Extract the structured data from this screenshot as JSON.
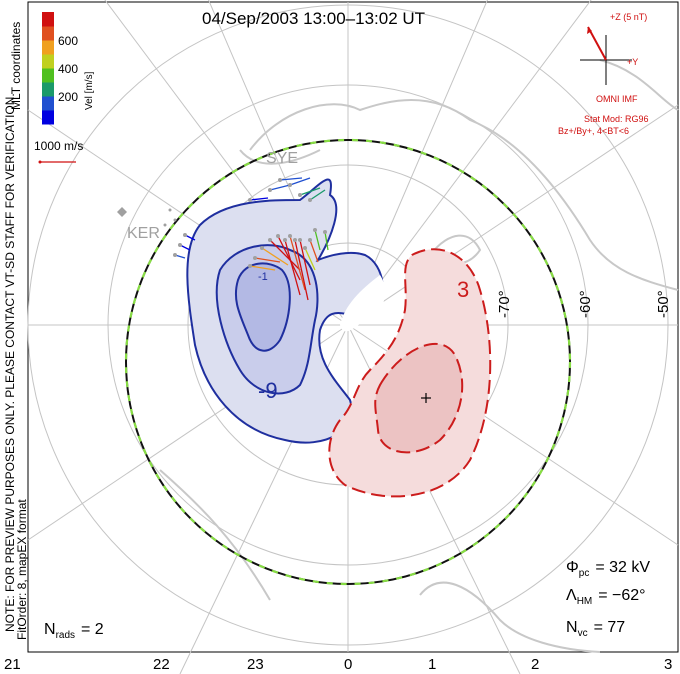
{
  "header": {
    "title": "04/Sep/2003 13:00–13:02 UT"
  },
  "color_scale": {
    "label": "Vel [m/s]",
    "ticks": [
      "200",
      "400",
      "600"
    ],
    "colors": [
      "#0000e0",
      "#2050d0",
      "#1a9a6a",
      "#50c020",
      "#c0d020",
      "#f0a020",
      "#e05020",
      "#d01010"
    ]
  },
  "coordinates_label": "MLT coordinates",
  "reference_vector": {
    "label": "1000 m/s"
  },
  "imf": {
    "z_label": "+Z (5 nT)",
    "y_label": "+Y",
    "omni": "OMNI IMF",
    "stat_mod": "Stat Mod: RG96",
    "condition": "Bz+/By+, 4<BT<6"
  },
  "stations": [
    "SYE",
    "KER"
  ],
  "latitude_labels": [
    "-50°",
    "-60°",
    "-70°"
  ],
  "contour_labels": {
    "negative": "-9",
    "positive": "3",
    "small": "-1"
  },
  "notes": {
    "preview": "NOTE: FOR PREVIEW PURPOSES ONLY. PLEASE CONTACT VT-SD STAFF FOR VERIFICATION.",
    "fit": "FitOrder: 8,  mapEX format"
  },
  "stats": {
    "phi_pc": {
      "symbol": "Φ",
      "sub": "pc",
      "value": "= 32 kV"
    },
    "lambda_hm": {
      "symbol": "Λ",
      "sub": "HM",
      "value": "= −62°"
    },
    "n_vc": {
      "symbol": "N",
      "sub": "vc",
      "value": "= 77"
    },
    "n_rads": {
      "symbol": "N",
      "sub": "rads",
      "value": "= 2"
    }
  },
  "mlt_axis": [
    "21",
    "22",
    "23",
    "0",
    "1",
    "2",
    "3"
  ],
  "colors": {
    "negative_contour": "#1f2f9f",
    "negative_fill": "#dcdff0",
    "negative_core": "#b8bde6",
    "positive_contour": "#cc1c1c",
    "positive_fill": "#f5dcdc",
    "positive_core": "#ecc3c3",
    "boundary_dash": "#88dd44",
    "coastline": "#c8c8c8",
    "grid": "#c4c4c4"
  }
}
